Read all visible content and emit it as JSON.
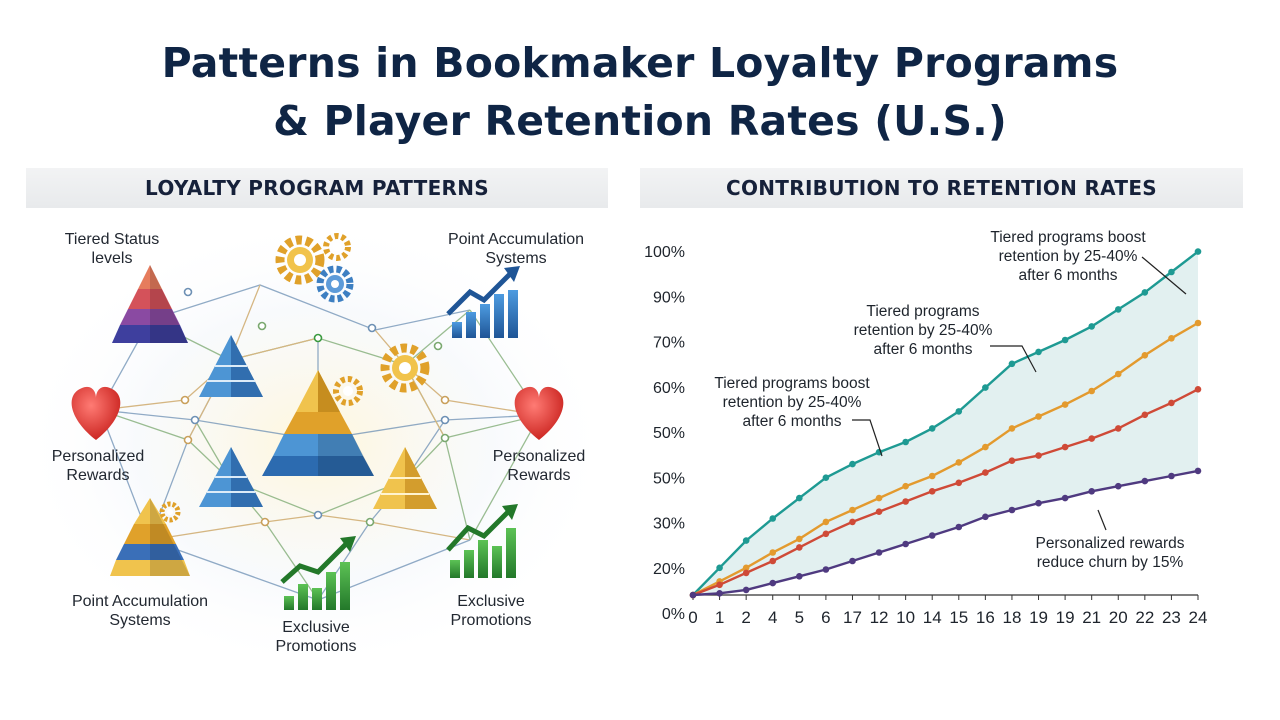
{
  "title": {
    "line1": "Patterns in Bookmaker Loyalty Programs",
    "line2": "& Player Retention Rates (U.S.)"
  },
  "left_panel": {
    "header": "LOYALTY PROGRAM PATTERNS",
    "labels": {
      "tiered": [
        "Tiered Status",
        "levels"
      ],
      "points_top": [
        "Point Accumulation",
        "Systems"
      ],
      "personalized_left": [
        "Personalized",
        "Rewards"
      ],
      "personalized_right": [
        "Personalized",
        "Rewards"
      ],
      "points_bottom": [
        "Point Accumulation",
        "Systems"
      ],
      "exclusive_bottom": [
        "Exclusive",
        "Promotions"
      ],
      "exclusive_right": [
        "Exclusive",
        "Promotions"
      ]
    },
    "icons": [
      "pyramid-icon",
      "gear-icon",
      "growth-chart-icon",
      "heart-icon"
    ],
    "colors": {
      "gold": "#e8b53a",
      "blue": "#3d7fc2",
      "green": "#3a9a3e",
      "red": "#d9302c",
      "purple": "#4b4aa8"
    }
  },
  "right_panel": {
    "header": "CONTRIBUTION TO RETENTION RATES",
    "annotations": {
      "top": [
        "Tiered programs boost",
        "retention by 25-40%",
        "after 6 months"
      ],
      "middle": [
        "Tiered programs",
        "retention by 25-40%",
        "after 6 months"
      ],
      "left": [
        "Tiered programs boost",
        "retention by 25-40%",
        "after 6 months"
      ],
      "bottom": [
        "Personalized rewards",
        "reduce churn by 15%"
      ]
    }
  },
  "chart_data": {
    "type": "line",
    "categories": [
      "0",
      "1",
      "2",
      "4",
      "5",
      "6",
      "17",
      "12",
      "10",
      "14",
      "15",
      "16",
      "18",
      "19",
      "19",
      "21",
      "20",
      "22",
      "23",
      "24"
    ],
    "y_tick_labels": [
      "0%",
      "20%",
      "30%",
      "50%",
      "50%",
      "60%",
      "70%",
      "90%",
      "100%"
    ],
    "series": [
      {
        "color": "#1e9a93",
        "values": [
          0,
          8,
          16,
          22.5,
          28.5,
          34.5,
          38.5,
          42,
          45,
          49,
          54,
          61,
          68,
          71.5,
          75,
          79,
          84,
          89,
          95,
          101
        ]
      },
      {
        "color": "#e39a2e",
        "values": [
          0,
          4,
          8,
          12.5,
          16.5,
          21.5,
          25,
          28.5,
          32,
          35,
          39,
          43.5,
          49,
          52.5,
          56,
          60,
          65,
          70.5,
          75.5,
          80
        ]
      },
      {
        "color": "#cf4a37",
        "values": [
          0,
          3,
          6.5,
          10,
          14,
          18,
          21.5,
          24.5,
          27.5,
          30.5,
          33,
          36,
          39.5,
          41,
          43.5,
          46,
          49,
          53,
          56.5,
          60.5
        ]
      },
      {
        "color": "#4f3a80",
        "values": [
          0,
          0.5,
          1.5,
          3.5,
          5.5,
          7.5,
          10,
          12.5,
          15,
          17.5,
          20,
          23,
          25,
          27,
          28.5,
          30.5,
          32,
          33.5,
          35,
          36.5
        ]
      }
    ],
    "fill_between": [
      0,
      3
    ],
    "grid": false
  }
}
